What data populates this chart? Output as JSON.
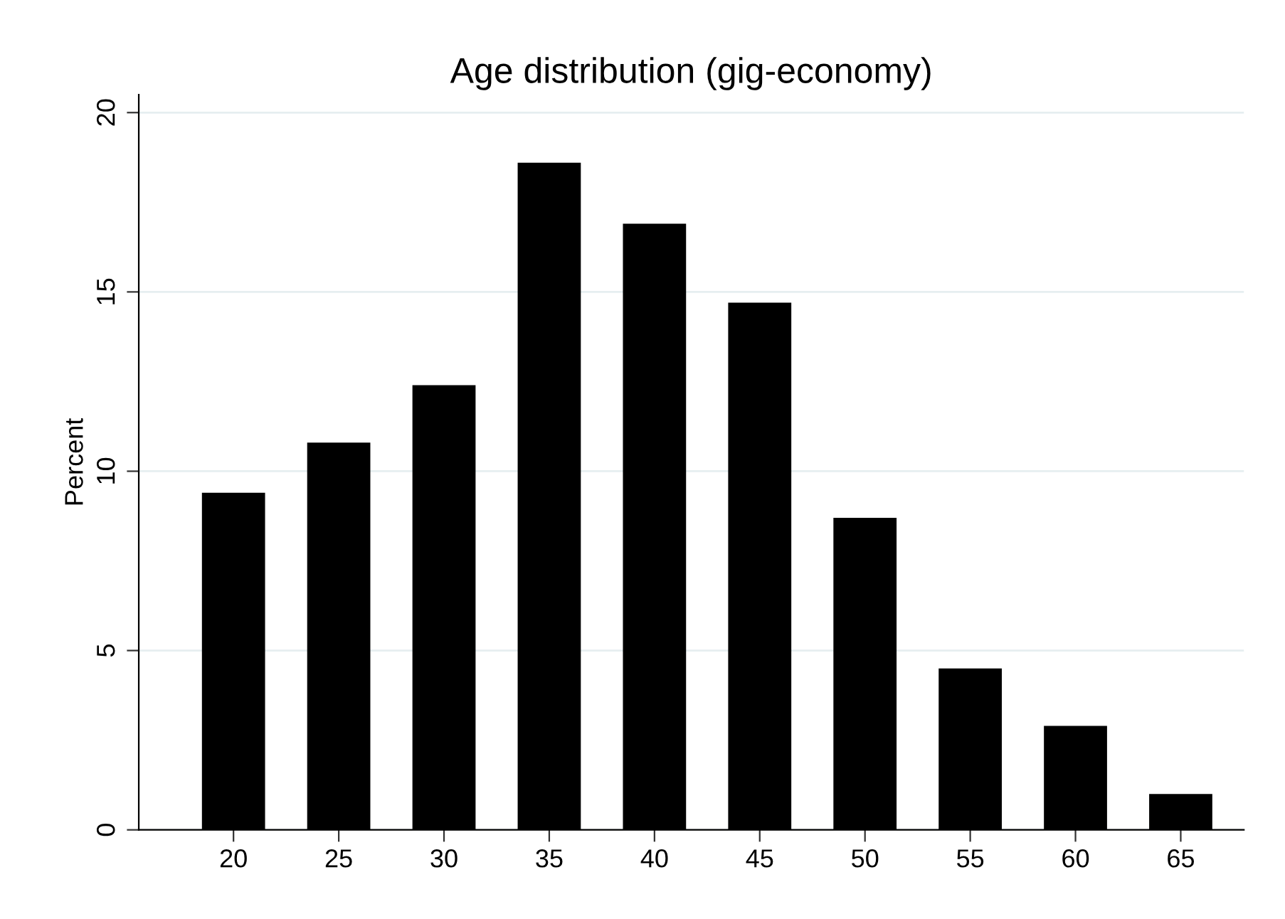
{
  "chart_data": {
    "type": "bar",
    "title": "Age distribution (gig-economy)",
    "ylabel": "Percent",
    "x": [
      20,
      25,
      30,
      35,
      40,
      45,
      50,
      55,
      60,
      65
    ],
    "values": [
      9.4,
      10.8,
      12.4,
      18.6,
      16.9,
      14.7,
      8.7,
      4.5,
      2.9,
      1.0
    ],
    "color": "#000000",
    "xlim": [
      15.5,
      68
    ],
    "xticks": [
      20,
      25,
      30,
      35,
      40,
      45,
      50,
      55,
      60,
      65
    ],
    "ylim": [
      0,
      20.5
    ],
    "yticks": [
      0,
      5,
      10,
      15,
      20
    ],
    "grid": "y",
    "legend": false
  }
}
